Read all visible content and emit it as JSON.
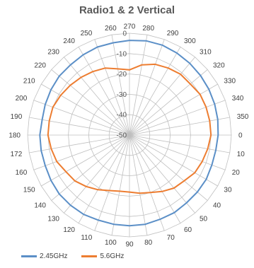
{
  "chart_data": {
    "type": "radar",
    "title": "Radio1 & 2 Vertical",
    "angles": [
      270,
      280,
      290,
      300,
      310,
      320,
      330,
      340,
      350,
      0,
      10,
      20,
      30,
      40,
      50,
      60,
      70,
      80,
      90,
      100,
      110,
      120,
      130,
      140,
      150,
      160,
      172,
      180,
      190,
      200,
      210,
      220,
      230,
      240,
      250,
      260
    ],
    "radial_ticks": [
      "0",
      "-10",
      "-20",
      "-30",
      "-40",
      "-50"
    ],
    "rlim": [
      -50,
      0
    ],
    "grid": true,
    "legend_position": "bottom-left",
    "series": [
      {
        "name": "2.45GHz",
        "color": "#5B8FC7",
        "values": [
          -3.5,
          -3,
          -3,
          -3.5,
          -4,
          -4.5,
          -5,
          -5.5,
          -6,
          -6.5,
          -7,
          -7,
          -6.5,
          -6.5,
          -6.5,
          -6,
          -6,
          -5.5,
          -5.5,
          -5.5,
          -5.5,
          -5,
          -5,
          -5,
          -5.5,
          -6,
          -6,
          -6,
          -6.5,
          -6,
          -5.5,
          -5,
          -5,
          -4.5,
          -4,
          -4
        ]
      },
      {
        "name": "5.6GHz",
        "color": "#ED7D31",
        "values": [
          -18,
          -15,
          -13,
          -12,
          -11,
          -11,
          -10,
          -10,
          -10,
          -10,
          -11,
          -12,
          -13,
          -15,
          -16,
          -18,
          -20,
          -21,
          -22,
          -22,
          -21,
          -19,
          -17,
          -15,
          -14,
          -12,
          -11,
          -10,
          -10,
          -10,
          -11,
          -12,
          -13,
          -14,
          -15,
          -17
        ]
      }
    ]
  }
}
